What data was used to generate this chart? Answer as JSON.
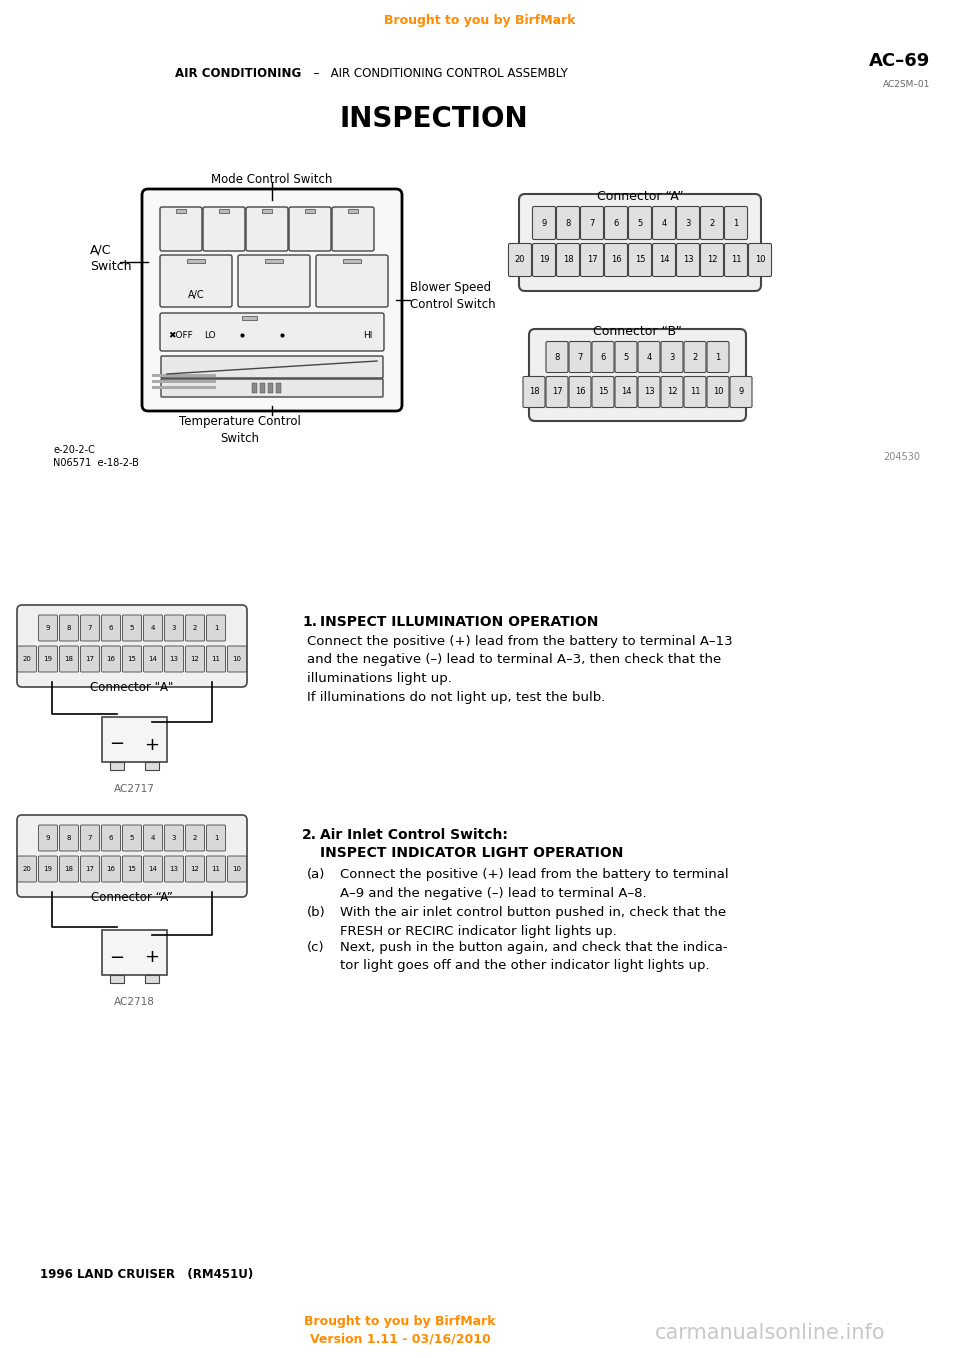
{
  "page_color": "#ffffff",
  "orange_color": "#FF8C00",
  "header_text": "Brought to you by BirfMark",
  "page_num": "AC–69",
  "section_bold": "AIR CONDITIONING",
  "section_rest": "  –   AIR CONDITIONING CONTROL ASSEMBLY",
  "code_top_right": "AC2SM–01",
  "title": "INSPECTION",
  "label_mode": "Mode Control Switch",
  "label_ac": "A/C\nSwitch",
  "label_blower": "Blower Speed\nControl Switch",
  "label_temp": "Temperature Control\nSwitch",
  "label_n06571": "e-20-2-C\nN06571  e-18-2-B",
  "fig_num_top": "204530",
  "connector_a_label": "Connector “A”",
  "connector_b_label": "Connector “B”",
  "section1_num": "1.",
  "section1_title": "    INSPECT ILLUMINATION OPERATION",
  "section1_body": "Connect the positive (+) lead from the battery to terminal A–13\nand the negative (–) lead to terminal A–3, then check that the\nilluminations light up.\nIf illuminations do not light up, test the bulb.",
  "section2_num": "2.",
  "section2_title": "Air Inlet Control Switch:",
  "section2_subtitle": "INSPECT INDICATOR LIGHT OPERATION",
  "section2a_label": "(a)",
  "section2a_body": "Connect the positive (+) lead from the battery to terminal\nA–9 and the negative (–) lead to terminal A–8.",
  "section2b_label": "(b)",
  "section2b_body": "With the air inlet control button pushed in, check that the\nFRESH or RECIRC indicator light lights up.",
  "section2c_label": "(c)",
  "section2c_body": "Next, push in the button again, and check that the indica-\ntor light goes off and the other indicator light lights up.",
  "connector_a2_label": "Connector \"A\"",
  "connector_a3_label": "Connector “A”",
  "fig_ac2717": "AC2717",
  "fig_ac2718": "AC2718",
  "footer_text1": "Brought to you by BirfMark",
  "footer_text2": "Version 1.11 - 03/16/2010",
  "footer_right": "carmanualsonline.info",
  "bottom_left": "1996 LAND CRUISER   (RM451U)"
}
